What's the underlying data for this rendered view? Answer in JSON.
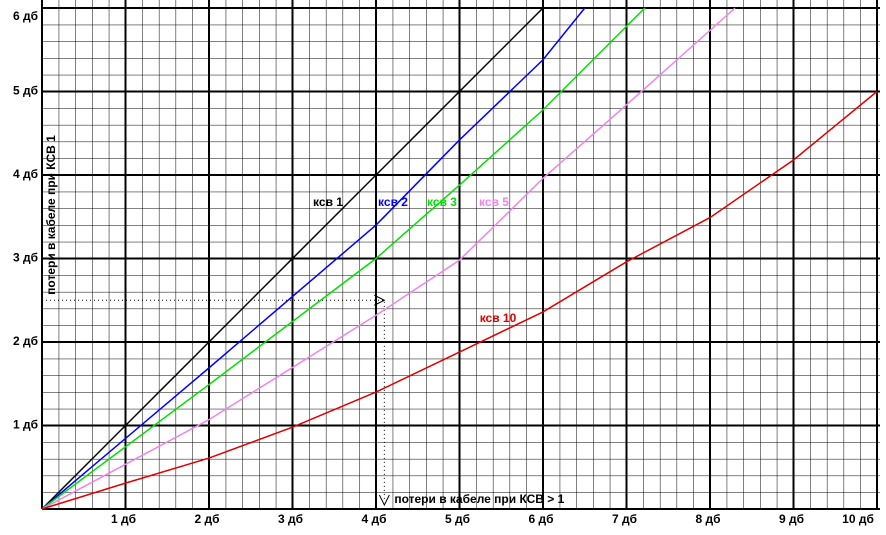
{
  "chart_data": {
    "type": "line",
    "x_label": "потери в кабеле при КСВ > 1",
    "y_label": "потери в кабеле при КСВ 1",
    "xlim": [
      0,
      10
    ],
    "ylim": [
      0,
      6
    ],
    "xticks": [
      {
        "value": 1,
        "label": "1 дб"
      },
      {
        "value": 2,
        "label": "2 дб"
      },
      {
        "value": 3,
        "label": "3 дб"
      },
      {
        "value": 4,
        "label": "4 дб"
      },
      {
        "value": 5,
        "label": "5 дб"
      },
      {
        "value": 6,
        "label": "6 дб"
      },
      {
        "value": 7,
        "label": "7 дб"
      },
      {
        "value": 8,
        "label": "8 дб"
      },
      {
        "value": 9,
        "label": "9 дб"
      },
      {
        "value": 10,
        "label": "10 дб"
      }
    ],
    "yticks": [
      {
        "value": 1,
        "label": "1 дб"
      },
      {
        "value": 2,
        "label": "2 дб"
      },
      {
        "value": 3,
        "label": "3 дб"
      },
      {
        "value": 4,
        "label": "4 дб"
      },
      {
        "value": 5,
        "label": "5 дб"
      },
      {
        "value": 6,
        "label": "6 дб"
      }
    ],
    "grid": true,
    "guide": {
      "x": 4.1,
      "y": 2.5
    },
    "series": [
      {
        "name": "ксв 1",
        "color": "#000000",
        "x": [
          0,
          6
        ],
        "values": [
          0,
          6
        ]
      },
      {
        "name": "ксв 2",
        "color": "#0000ff",
        "x": [
          0,
          2,
          4,
          5,
          6,
          6.5
        ],
        "values": [
          0,
          1.69,
          3.4,
          4.42,
          5.38,
          6
        ]
      },
      {
        "name": "ксв 3",
        "color": "#00e000",
        "x": [
          0,
          2,
          4,
          5,
          6,
          7.22
        ],
        "values": [
          0,
          1.49,
          3.0,
          3.88,
          4.78,
          6
        ]
      },
      {
        "name": "ксв 5",
        "color": "#ee82ee",
        "x": [
          0,
          2,
          4,
          5,
          6,
          7,
          8.3
        ],
        "values": [
          0,
          1.07,
          2.32,
          2.98,
          3.96,
          4.84,
          6
        ]
      },
      {
        "name": "ксв 10",
        "color": "#e00000",
        "x": [
          0,
          1,
          2,
          3,
          4,
          5,
          6,
          7,
          8,
          9,
          10
        ],
        "values": [
          0,
          0.31,
          0.61,
          0.98,
          1.4,
          1.88,
          2.36,
          2.96,
          3.49,
          4.18,
          5
        ]
      }
    ]
  }
}
